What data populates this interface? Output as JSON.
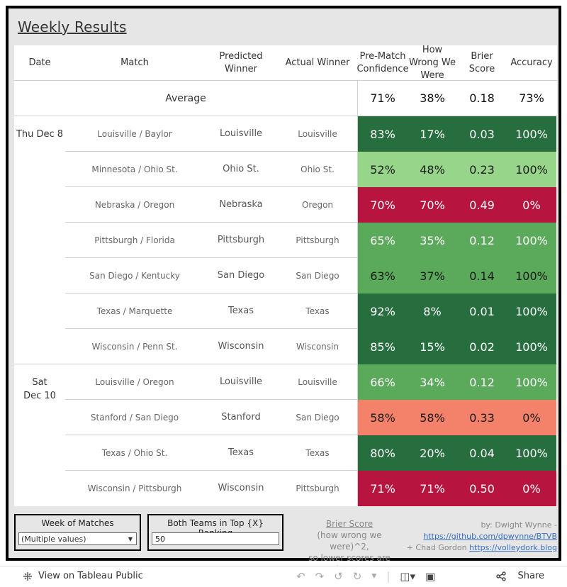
{
  "title": "Weekly Results",
  "headers": {
    "date": "Date",
    "match": "Match",
    "predicted": "Predicted Winner",
    "actual": "Actual Winner",
    "confidence": "Pre-Match Confidence",
    "wrong": "How Wrong We Were",
    "brier": "Brier Score",
    "accuracy": "Accuracy"
  },
  "average": {
    "label": "Average",
    "confidence": "71%",
    "wrong": "38%",
    "brier": "0.18",
    "accuracy": "73%"
  },
  "dates": [
    "Thu Dec 8",
    "Sat Dec 10"
  ],
  "rows": [
    {
      "match": "Louisville / Baylor",
      "predicted": "Louisville",
      "actual": "Louisville",
      "confidence": "83%",
      "wrong": "17%",
      "brier": "0.03",
      "accuracy": "100%"
    },
    {
      "match": "Minnesota / Ohio St.",
      "predicted": "Ohio St.",
      "actual": "Ohio St.",
      "confidence": "52%",
      "wrong": "48%",
      "brier": "0.23",
      "accuracy": "100%"
    },
    {
      "match": "Nebraska / Oregon",
      "predicted": "Nebraska",
      "actual": "Oregon",
      "confidence": "70%",
      "wrong": "70%",
      "brier": "0.49",
      "accuracy": "0%"
    },
    {
      "match": "Pittsburgh / Florida",
      "predicted": "Pittsburgh",
      "actual": "Pittsburgh",
      "confidence": "65%",
      "wrong": "35%",
      "brier": "0.12",
      "accuracy": "100%"
    },
    {
      "match": "San Diego / Kentucky",
      "predicted": "San Diego",
      "actual": "San Diego",
      "confidence": "63%",
      "wrong": "37%",
      "brier": "0.14",
      "accuracy": "100%"
    },
    {
      "match": "Texas / Marquette",
      "predicted": "Texas",
      "actual": "Texas",
      "confidence": "92%",
      "wrong": "8%",
      "brier": "0.01",
      "accuracy": "100%"
    },
    {
      "match": "Wisconsin / Penn St.",
      "predicted": "Wisconsin",
      "actual": "Wisconsin",
      "confidence": "85%",
      "wrong": "15%",
      "brier": "0.02",
      "accuracy": "100%"
    },
    {
      "match": "Louisville / Oregon",
      "predicted": "Louisville",
      "actual": "Louisville",
      "confidence": "66%",
      "wrong": "34%",
      "brier": "0.12",
      "accuracy": "100%"
    },
    {
      "match": "Stanford / San Diego",
      "predicted": "Stanford",
      "actual": "San Diego",
      "confidence": "58%",
      "wrong": "58%",
      "brier": "0.33",
      "accuracy": "0%"
    },
    {
      "match": "Texas / Ohio St.",
      "predicted": "Texas",
      "actual": "Texas",
      "confidence": "80%",
      "wrong": "20%",
      "brier": "0.04",
      "accuracy": "100%"
    },
    {
      "match": "Wisconsin / Pittsburgh",
      "predicted": "Wisconsin",
      "actual": "Pittsburgh",
      "confidence": "71%",
      "wrong": "71%",
      "brier": "0.50",
      "accuracy": "0%"
    }
  ],
  "row_colors": [
    {
      "bg": "#276e3f",
      "fg": "#ffffff"
    },
    {
      "bg": "#97d58a",
      "fg": "#1a1a1a"
    },
    {
      "bg": "#b7143f",
      "fg": "#ffffff"
    },
    {
      "bg": "#5ba95a",
      "fg": "#ffffff"
    },
    {
      "bg": "#5ba95a",
      "fg": "#1a1a1a"
    },
    {
      "bg": "#276e3f",
      "fg": "#ffffff"
    },
    {
      "bg": "#276e3f",
      "fg": "#ffffff"
    },
    {
      "bg": "#5ba95a",
      "fg": "#ffffff"
    },
    {
      "bg": "#f4826a",
      "fg": "#1a1a1a"
    },
    {
      "bg": "#276e3f",
      "fg": "#ffffff"
    },
    {
      "bg": "#b7143f",
      "fg": "#ffffff"
    }
  ],
  "filters": {
    "week_label": "Week of Matches",
    "week_value": "(Multiple values)",
    "rank_label": "Both Teams in Top {X} Ranking",
    "rank_value": "50"
  },
  "brier_note": {
    "title": "Brier Score",
    "line1": "(how wrong we were)^2,",
    "line2": "so lower scores are better"
  },
  "credit": {
    "by": "by: Dwight Wynne -",
    "link1": "https://github.com/dpwynne/BTVB",
    "plus": "+ Chad Gordon",
    "link2": "https://volleydork.blog"
  },
  "footer": {
    "view_label": "View on Tableau Public",
    "share_label": "Share"
  },
  "icons": [
    "tableau-icon",
    "undo-icon",
    "redo-icon",
    "revert-icon",
    "refresh-icon",
    "comment-icon",
    "fullscreen-icon",
    "share-icon"
  ]
}
